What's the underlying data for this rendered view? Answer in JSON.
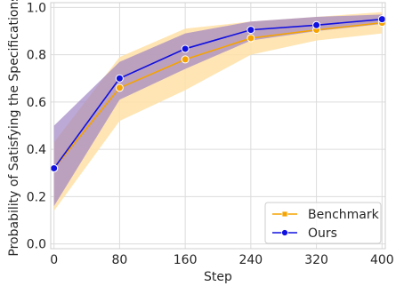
{
  "chart_data": {
    "type": "line",
    "title": "",
    "xlabel": "Step",
    "ylabel": "Probability of Satisfying the Specifications",
    "x": [
      0,
      80,
      160,
      240,
      320,
      400
    ],
    "x_tick_labels": [
      "0",
      "80",
      "160",
      "240",
      "320",
      "400"
    ],
    "y_ticks": [
      0.0,
      0.2,
      0.4,
      0.6,
      0.8,
      1.0
    ],
    "y_tick_labels": [
      "0.0",
      "0.2",
      "0.4",
      "0.6",
      "0.8",
      "1.0"
    ],
    "xlim": [
      -4,
      404
    ],
    "ylim": [
      -0.02,
      1.02
    ],
    "grid": true,
    "legend_position": "lower-right",
    "series": [
      {
        "name": "Benchmark",
        "color": "#f5a300",
        "band_color": "#ffe0a6",
        "marker": "square",
        "values": [
          0.32,
          0.66,
          0.78,
          0.87,
          0.905,
          0.935
        ],
        "lower": [
          0.14,
          0.52,
          0.65,
          0.8,
          0.86,
          0.89
        ],
        "upper": [
          0.43,
          0.79,
          0.91,
          0.94,
          0.96,
          0.98
        ]
      },
      {
        "name": "Ours",
        "color": "#1010e0",
        "band_color": "#9f85c4",
        "marker": "circle",
        "values": [
          0.32,
          0.7,
          0.825,
          0.905,
          0.925,
          0.95
        ],
        "lower": [
          0.16,
          0.61,
          0.74,
          0.86,
          0.9,
          0.93
        ],
        "upper": [
          0.5,
          0.77,
          0.89,
          0.94,
          0.96,
          0.97
        ]
      }
    ]
  }
}
